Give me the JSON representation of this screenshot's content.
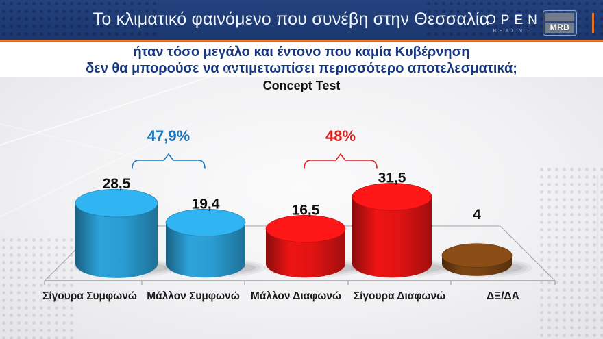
{
  "header": {
    "title": "Το κλιματικό φαινόμενο που συνέβη στην Θεσσαλία",
    "open_logo": {
      "name": "OPEN",
      "tagline": "BEYOND"
    },
    "mrb_logo": {
      "text": "MRB"
    }
  },
  "question": {
    "line1": "ήταν τόσο μεγάλο και έντονο που καμία Κυβέρνηση",
    "line2": "δεν θα μπορούσε να αντιμετωπίσει περισσότερο αποτελεσματικά;"
  },
  "chart_data": {
    "type": "bar",
    "style": "3d-cylinder",
    "title": "Concept Test",
    "categories": [
      "Σίγουρα Συμφωνώ",
      "Μάλλον Συμφωνώ",
      "Μάλλον Διαφωνώ",
      "Σίγουρα Διαφωνώ",
      "ΔΞ/ΔΑ"
    ],
    "values": [
      28.5,
      19.4,
      16.5,
      31.5,
      4
    ],
    "value_labels": [
      "28,5",
      "19,4",
      "16,5",
      "31,5",
      "4"
    ],
    "bar_colors": [
      "#2BA1D8",
      "#2BA1D8",
      "#E81414",
      "#E81414",
      "#7C4514"
    ],
    "groups": [
      {
        "label": "47,9%",
        "from": 0,
        "to": 1,
        "color": "#1B78BE"
      },
      {
        "label": "48%",
        "from": 2,
        "to": 3,
        "color": "#DF1E1E"
      }
    ],
    "ylim": [
      0,
      35
    ],
    "xlabel": "",
    "ylabel": "",
    "grid": false,
    "legend": "none"
  },
  "colors": {
    "header_bg": "#1E3B75",
    "accent_orange": "#E67425",
    "question_text": "#16377D",
    "agree_blue": "#2BA1D8",
    "disagree_red": "#E81414",
    "dk_brown": "#7C4514",
    "value_text": "#101010",
    "axis_line": "#9EA2A8"
  }
}
